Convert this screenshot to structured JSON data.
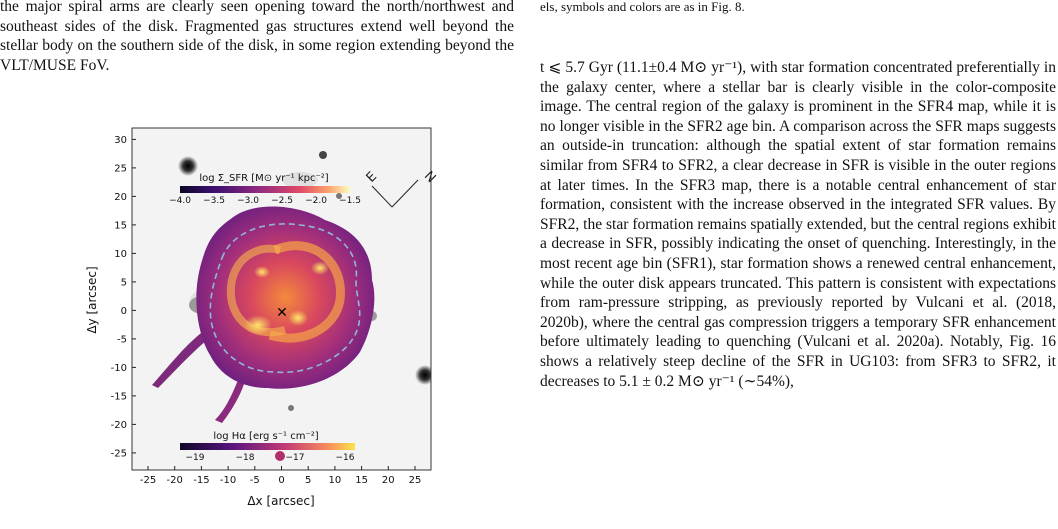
{
  "left_column": {
    "paragraph": "the major spiral arms are clearly seen opening toward the north/northwest and southeast sides of the disk. Fragmented gas structures extend well beyond the stellar body on the southern side of the disk, in some region extending beyond the VLT/MUSE FoV."
  },
  "right_column": {
    "caption_tail": "els, symbols and colors are as in Fig. 8.",
    "paragraph": "t ⩽ 5.7 Gyr (11.1±0.4 M⊙ yr⁻¹), with star formation concentrated preferentially in the galaxy center, where a stellar bar is clearly visible in the color-composite image. The central region of the galaxy is prominent in the SFR4 map, while it is no longer visible in the SFR2 age bin. A comparison across the SFR maps suggests an outside-in truncation: although the spatial extent of star formation remains similar from SFR4 to SFR2, a clear decrease in SFR is visible in the outer regions at later times. In the SFR3 map, there is a notable central enhancement of star formation, consistent with the increase observed in the integrated SFR values. By SFR2, the star formation remains spatially extended, but the central regions exhibit a decrease in SFR, possibly indicating the onset of quenching. Interestingly, in the most recent age bin (SFR1), star formation shows a renewed central enhancement, while the outer disk appears truncated. This pattern is consistent with expectations from ram-pressure stripping, as previously reported by Vulcani et al. (2018, 2020b), where the central gas compression triggers a temporary SFR enhancement before ultimately leading to quenching (Vulcani et al. 2020a). Notably, Fig. 16 shows a relatively steep decline of the SFR in UG103: from SFR3 to SFR2, it decreases to 5.1 ± 0.2 M⊙ yr⁻¹ (∼54%),"
  },
  "figure": {
    "xlabel": "Δx [arcsec]",
    "ylabel": "Δy [arcsec]",
    "x_ticks": [
      "-25",
      "-20",
      "-15",
      "-10",
      "-5",
      "0",
      "5",
      "10",
      "15",
      "20",
      "25"
    ],
    "y_ticks": [
      "30",
      "25",
      "20",
      "15",
      "10",
      "5",
      "0",
      "-5",
      "-10",
      "-15",
      "-20",
      "-25"
    ],
    "compass": {
      "east": "E",
      "north": "N"
    },
    "colorbar_sfr": {
      "label": "log Σ_SFR [M⊙ yr⁻¹ kpc⁻²]",
      "ticks": [
        "−4.0",
        "−3.5",
        "−3.0",
        "−2.5",
        "−2.0",
        "−1.5"
      ]
    },
    "colorbar_halpha": {
      "label": "log Hα [erg s⁻¹ cm⁻²]",
      "ticks": [
        "−19",
        "−18",
        "−17",
        "−16"
      ]
    },
    "center_marker": "✕",
    "colors": {
      "contour": "#8fb7d9",
      "sfr_low": "#1a0b38",
      "sfr_high": "#fbe44c"
    }
  },
  "chart_data": {
    "type": "heatmap",
    "title": "",
    "xlabel": "Δx [arcsec]",
    "ylabel": "Δy [arcsec]",
    "xlim": [
      -28,
      28
    ],
    "ylim": [
      -28,
      32
    ],
    "colorbars": [
      {
        "label": "log Σ_SFR [M⊙ yr⁻¹ kpc⁻²]",
        "range": [
          -4.0,
          -1.5
        ]
      },
      {
        "label": "log Hα [erg s⁻¹ cm⁻²]",
        "range": [
          -19.3,
          -15.8
        ]
      }
    ],
    "center": [
      0,
      0
    ]
  }
}
